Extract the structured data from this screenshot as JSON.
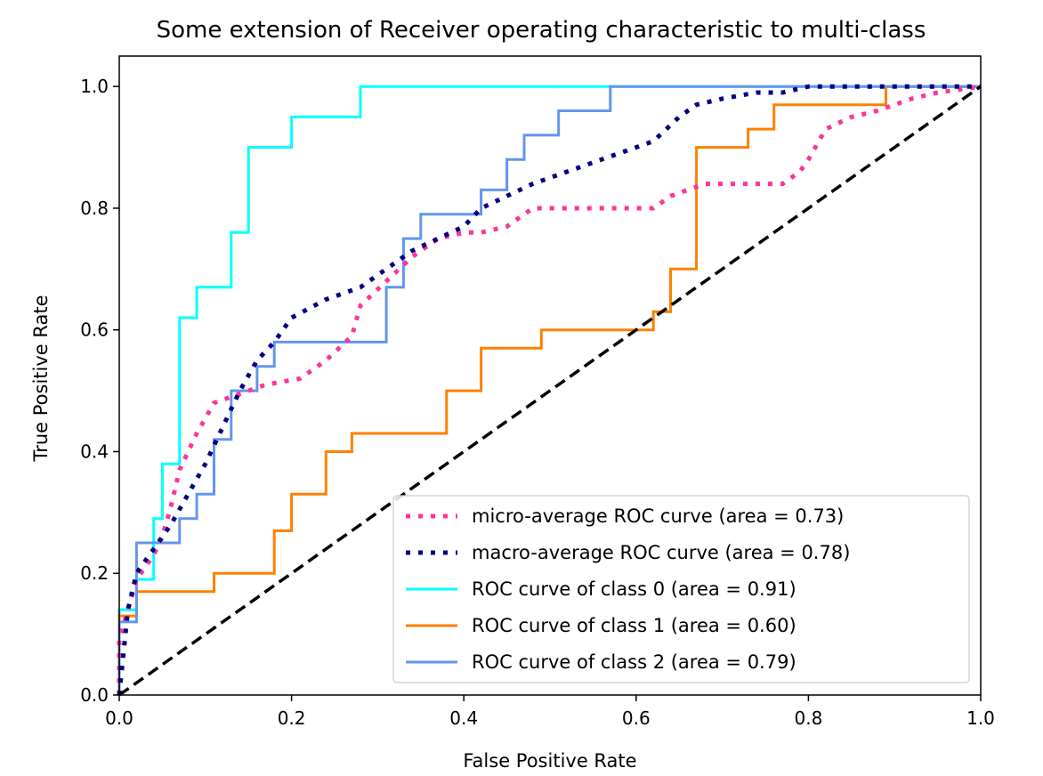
{
  "chart_data": {
    "type": "line",
    "title": "Some extension of Receiver operating characteristic to multi-class",
    "xlabel": "False Positive Rate",
    "ylabel": "True Positive Rate",
    "xlim": [
      0.0,
      1.0
    ],
    "ylim": [
      0.0,
      1.05
    ],
    "xticks": [
      "0.0",
      "0.2",
      "0.4",
      "0.6",
      "0.8",
      "1.0"
    ],
    "yticks": [
      "0.0",
      "0.2",
      "0.4",
      "0.6",
      "0.8",
      "1.0"
    ],
    "grid": false,
    "legend_position": "lower-right",
    "series": [
      {
        "name": "micro-average ROC curve (area = 0.73)",
        "color": "#ff3399",
        "style": "dotted",
        "x": [
          0.0,
          0.0,
          0.01,
          0.02,
          0.04,
          0.05,
          0.06,
          0.07,
          0.09,
          0.11,
          0.13,
          0.15,
          0.17,
          0.21,
          0.24,
          0.27,
          0.28,
          0.31,
          0.34,
          0.37,
          0.4,
          0.42,
          0.45,
          0.48,
          0.62,
          0.64,
          0.68,
          0.73,
          0.77,
          0.79,
          0.8,
          0.82,
          0.85,
          0.88,
          0.92,
          0.95,
          1.0
        ],
        "y": [
          0.0,
          0.09,
          0.14,
          0.19,
          0.23,
          0.26,
          0.31,
          0.37,
          0.43,
          0.48,
          0.49,
          0.5,
          0.51,
          0.52,
          0.55,
          0.59,
          0.64,
          0.68,
          0.72,
          0.75,
          0.76,
          0.76,
          0.77,
          0.8,
          0.8,
          0.82,
          0.84,
          0.84,
          0.84,
          0.86,
          0.88,
          0.93,
          0.95,
          0.96,
          0.98,
          0.99,
          1.0
        ]
      },
      {
        "name": "macro-average ROC curve (area = 0.78)",
        "color": "#000080",
        "style": "dotted",
        "x": [
          0.0,
          0.01,
          0.02,
          0.04,
          0.06,
          0.08,
          0.1,
          0.12,
          0.14,
          0.16,
          0.18,
          0.2,
          0.24,
          0.28,
          0.31,
          0.34,
          0.37,
          0.4,
          0.42,
          0.45,
          0.48,
          0.52,
          0.56,
          0.6,
          0.62,
          0.65,
          0.67,
          0.7,
          0.74,
          0.77,
          0.8,
          0.83,
          0.88,
          0.93,
          1.0
        ],
        "y": [
          0.0,
          0.14,
          0.2,
          0.24,
          0.28,
          0.33,
          0.38,
          0.44,
          0.5,
          0.55,
          0.58,
          0.62,
          0.65,
          0.67,
          0.7,
          0.73,
          0.75,
          0.77,
          0.8,
          0.82,
          0.84,
          0.86,
          0.88,
          0.9,
          0.91,
          0.95,
          0.97,
          0.98,
          0.99,
          0.99,
          1.0,
          1.0,
          1.0,
          1.0,
          1.0
        ]
      },
      {
        "name": "ROC curve of class 0 (area = 0.91)",
        "color": "#00ffff",
        "style": "solid",
        "x": [
          0.0,
          0.0,
          0.02,
          0.02,
          0.04,
          0.04,
          0.05,
          0.05,
          0.07,
          0.07,
          0.09,
          0.09,
          0.13,
          0.13,
          0.15,
          0.15,
          0.2,
          0.2,
          0.28,
          0.28,
          0.3,
          0.57,
          0.6,
          1.0
        ],
        "y": [
          0.0,
          0.14,
          0.14,
          0.19,
          0.19,
          0.29,
          0.29,
          0.38,
          0.38,
          0.62,
          0.62,
          0.67,
          0.67,
          0.76,
          0.76,
          0.9,
          0.9,
          0.95,
          0.95,
          1.0,
          1.0,
          1.0,
          1.0,
          1.0
        ]
      },
      {
        "name": "ROC curve of class 1 (area = 0.60)",
        "color": "#ff8000",
        "style": "solid",
        "x": [
          0.0,
          0.0,
          0.02,
          0.02,
          0.11,
          0.11,
          0.18,
          0.18,
          0.2,
          0.2,
          0.24,
          0.24,
          0.27,
          0.27,
          0.38,
          0.38,
          0.42,
          0.42,
          0.49,
          0.49,
          0.62,
          0.62,
          0.64,
          0.64,
          0.67,
          0.67,
          0.73,
          0.73,
          0.76,
          0.76,
          0.84,
          0.89,
          0.89,
          1.0
        ],
        "y": [
          0.0,
          0.13,
          0.13,
          0.17,
          0.17,
          0.2,
          0.2,
          0.27,
          0.27,
          0.33,
          0.33,
          0.4,
          0.4,
          0.43,
          0.43,
          0.5,
          0.5,
          0.57,
          0.57,
          0.6,
          0.6,
          0.63,
          0.63,
          0.7,
          0.7,
          0.9,
          0.9,
          0.93,
          0.93,
          0.97,
          0.97,
          0.97,
          1.0,
          1.0
        ]
      },
      {
        "name": "ROC curve of class 2 (area = 0.79)",
        "color": "#6495ed",
        "style": "solid",
        "x": [
          0.0,
          0.0,
          0.02,
          0.02,
          0.07,
          0.07,
          0.09,
          0.09,
          0.11,
          0.11,
          0.13,
          0.13,
          0.16,
          0.16,
          0.18,
          0.18,
          0.31,
          0.31,
          0.33,
          0.33,
          0.35,
          0.35,
          0.42,
          0.42,
          0.45,
          0.45,
          0.47,
          0.47,
          0.51,
          0.51,
          0.57,
          0.57,
          1.0
        ],
        "y": [
          0.0,
          0.12,
          0.12,
          0.25,
          0.25,
          0.29,
          0.29,
          0.33,
          0.33,
          0.42,
          0.42,
          0.5,
          0.5,
          0.54,
          0.54,
          0.58,
          0.58,
          0.67,
          0.67,
          0.75,
          0.75,
          0.79,
          0.79,
          0.83,
          0.83,
          0.88,
          0.88,
          0.92,
          0.92,
          0.96,
          0.96,
          1.0,
          1.0
        ]
      },
      {
        "name": "",
        "color": "#000000",
        "style": "dashed",
        "x": [
          0.0,
          1.0
        ],
        "y": [
          0.0,
          1.0
        ]
      }
    ]
  }
}
